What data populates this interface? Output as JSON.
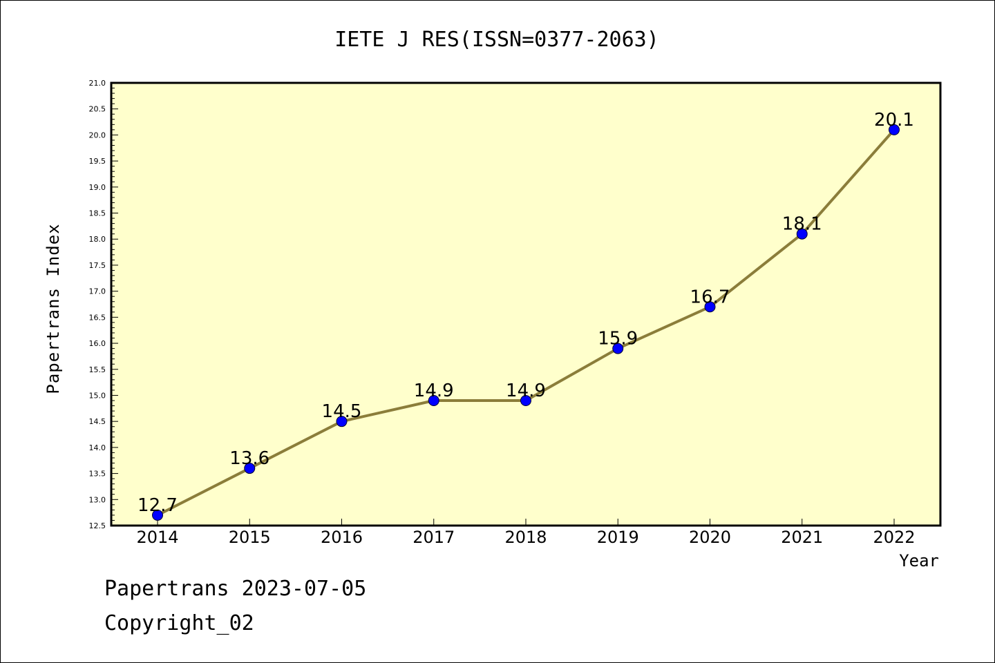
{
  "footer": {
    "line1": "Papertrans 2023-07-05",
    "line2": "Copyright_02"
  },
  "colors": {
    "plot_background": "#ffffcc",
    "line": "#8b7d3a",
    "marker": "#0000ff",
    "axis": "#000000"
  },
  "chart_data": {
    "type": "line",
    "title": "IETE J RES(ISSN=0377-2063)",
    "xlabel": "Year",
    "ylabel": "Papertrans Index",
    "categories": [
      "2014",
      "2015",
      "2016",
      "2017",
      "2018",
      "2019",
      "2020",
      "2021",
      "2022"
    ],
    "series": [
      {
        "values": [
          12.7,
          13.6,
          14.5,
          14.9,
          14.9,
          15.9,
          16.7,
          18.1,
          20.1
        ]
      }
    ],
    "data_labels": [
      "12.7",
      "13.6",
      "14.5",
      "14.9",
      "14.9",
      "15.9",
      "16.7",
      "18.1",
      "20.1"
    ],
    "ylim": [
      12.5,
      21.0
    ],
    "yticks": [
      "12.5",
      "13.0",
      "13.5",
      "14.0",
      "14.5",
      "15.0",
      "15.5",
      "16.0",
      "16.5",
      "17.0",
      "17.5",
      "18.0",
      "18.5",
      "19.0",
      "19.5",
      "20.0",
      "20.5",
      "21.0"
    ],
    "grid": false,
    "legend": "none"
  }
}
